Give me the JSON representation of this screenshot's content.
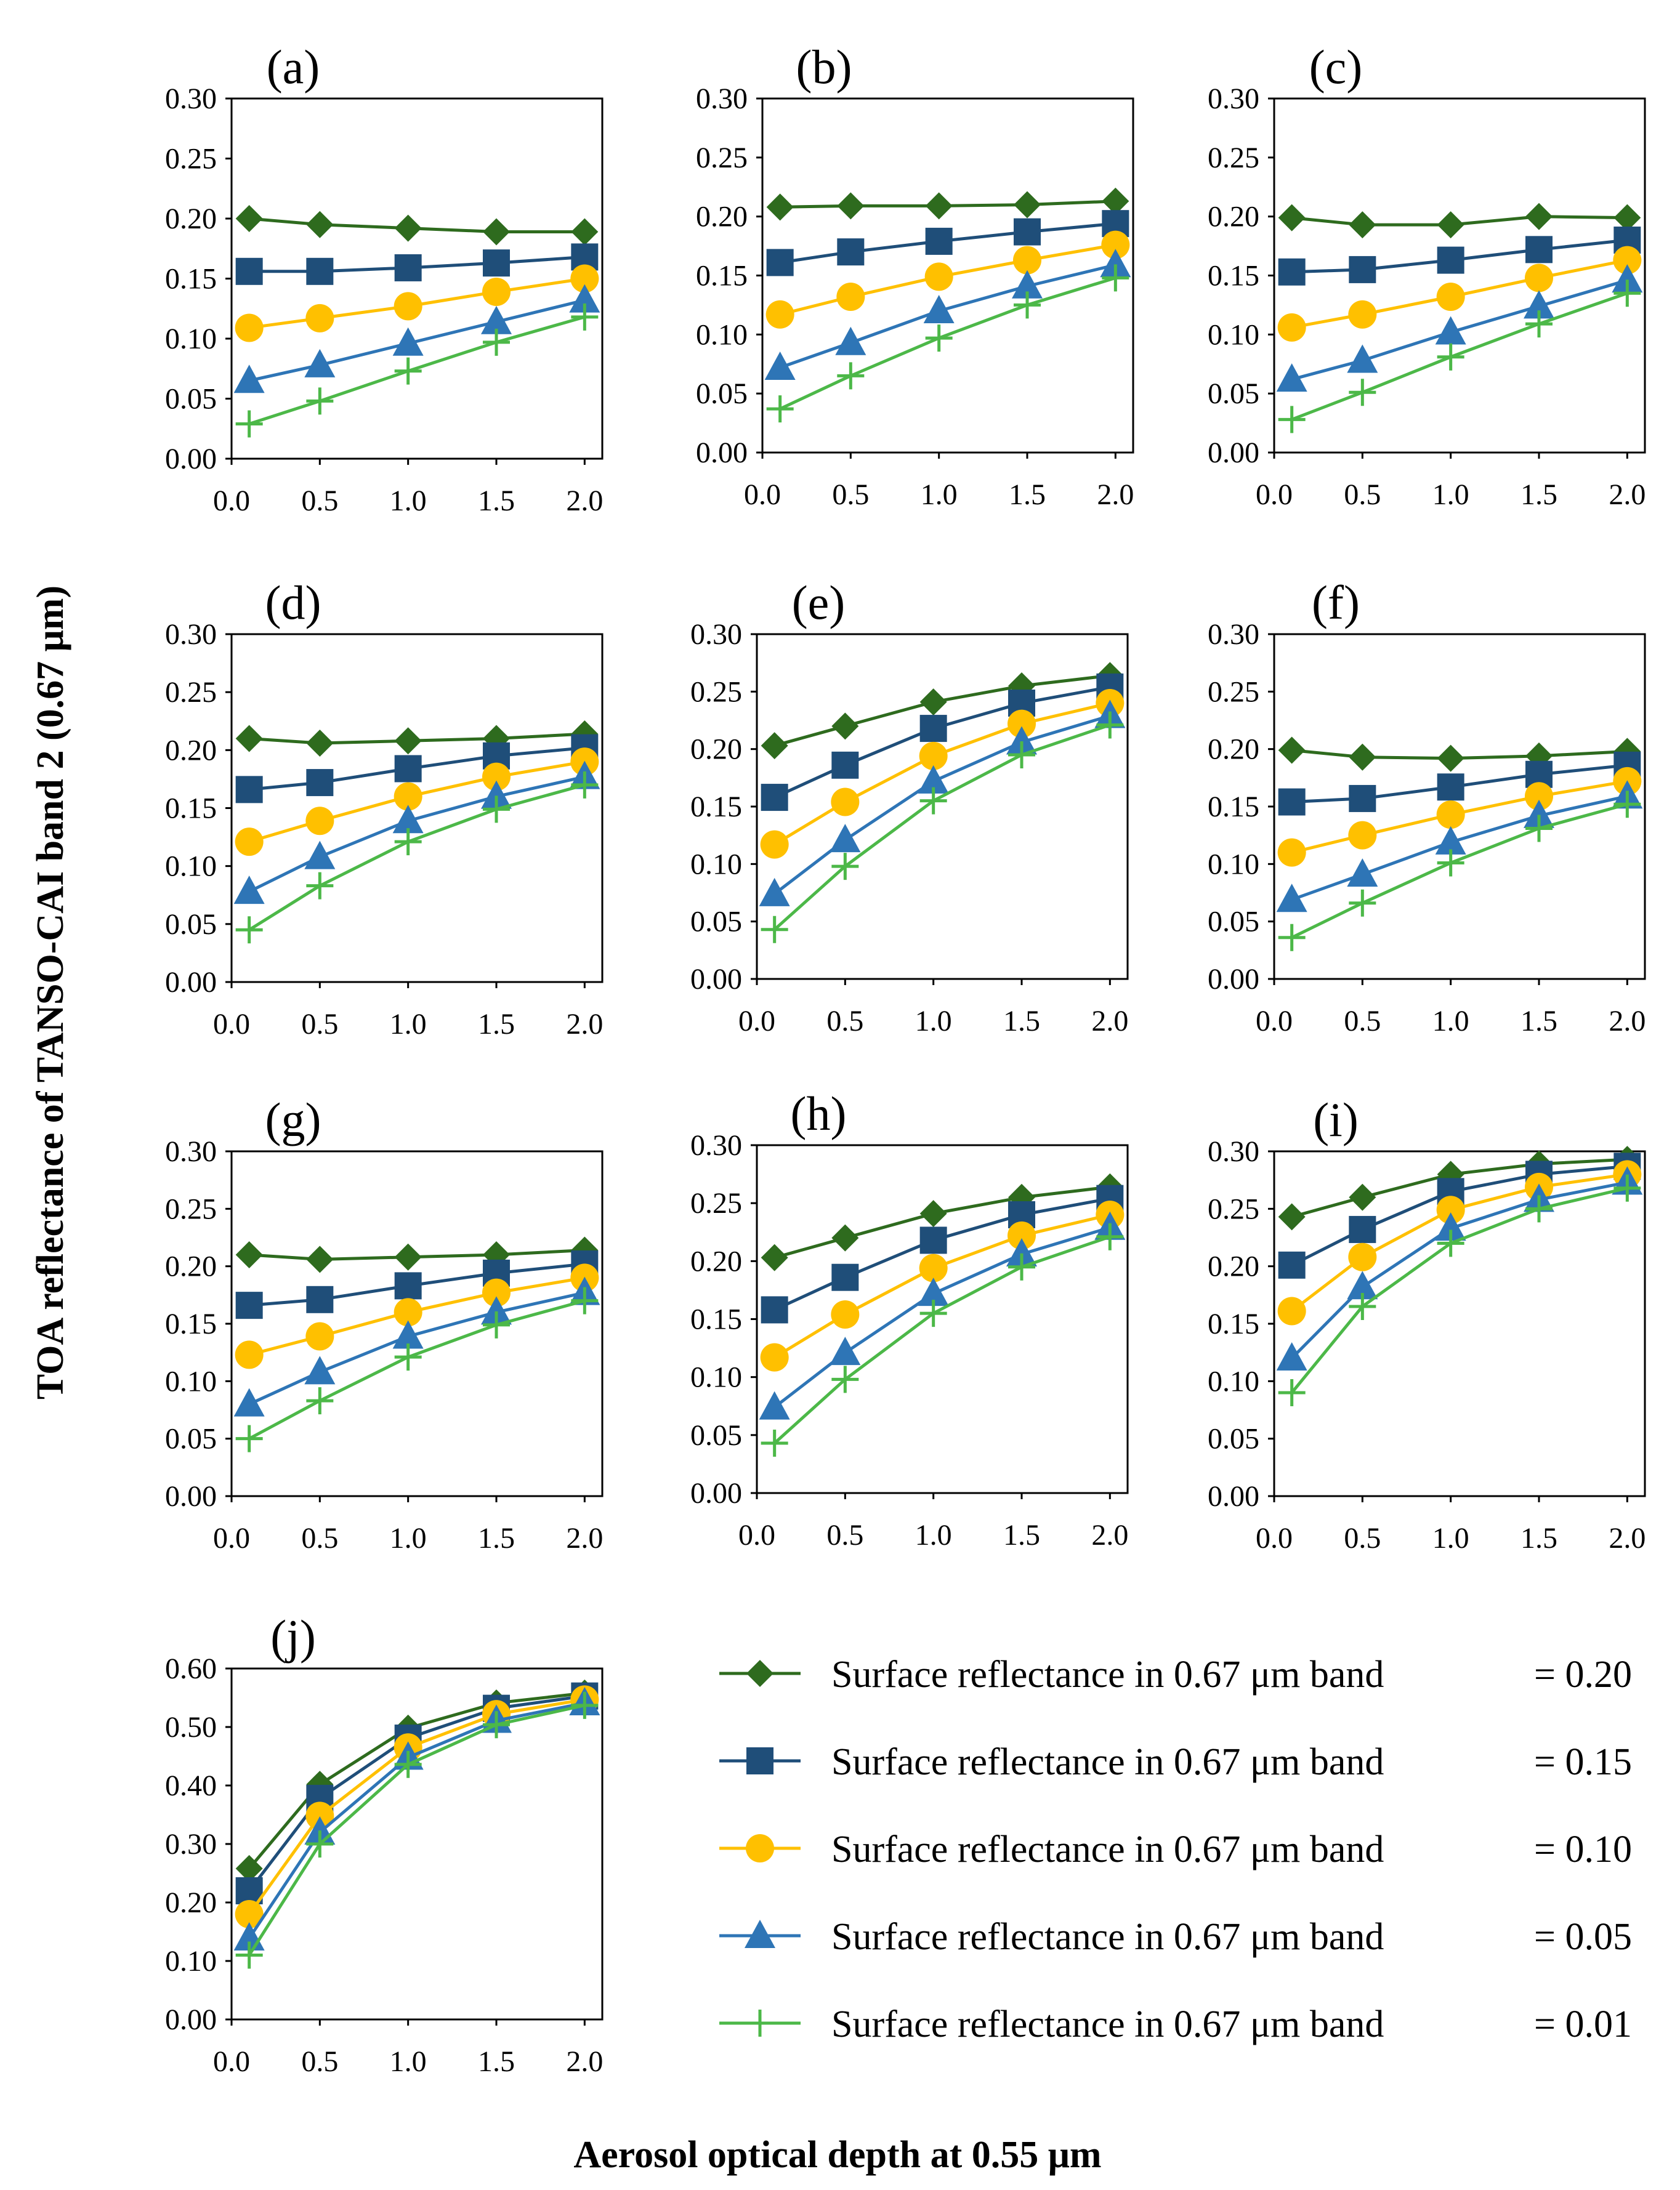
{
  "figure": {
    "ylabel": "TOA reflectance of TANSO-CAI band 2 (0.67 μm)",
    "xlabel": "Aerosol optical depth at 0.55 μm"
  },
  "legend": [
    {
      "label": "Surface reflectance in 0.67 μm band",
      "value": "= 0.20",
      "color": "#2E6B1E",
      "marker": "diamond"
    },
    {
      "label": "Surface reflectance in 0.67 μm band",
      "value": "= 0.15",
      "color": "#1F4E79",
      "marker": "square"
    },
    {
      "label": "Surface reflectance in 0.67 μm band",
      "value": "= 0.10",
      "color": "#FFC000",
      "marker": "circle"
    },
    {
      "label": "Surface reflectance in 0.67 μm band",
      "value": "= 0.05",
      "color": "#2E75B6",
      "marker": "triangle"
    },
    {
      "label": "Surface reflectance in 0.67 μm band",
      "value": "= 0.01",
      "color": "#4CB848",
      "marker": "plus"
    }
  ],
  "chart_data": [
    {
      "type": "line",
      "title": "(a)",
      "x": [
        0.1,
        0.5,
        1.0,
        1.5,
        2.0
      ],
      "xticks": [
        "0.0",
        "0.5",
        "1.0",
        "1.5",
        "2.0"
      ],
      "xlim": [
        0,
        2.1
      ],
      "yticks": [
        "0.00",
        "0.05",
        "0.10",
        "0.15",
        "0.20",
        "0.25",
        "0.30"
      ],
      "ylim": [
        0,
        0.3
      ],
      "series": [
        {
          "name": "0.20",
          "values": [
            0.2,
            0.195,
            0.192,
            0.189,
            0.189
          ]
        },
        {
          "name": "0.15",
          "values": [
            0.156,
            0.156,
            0.159,
            0.163,
            0.168
          ]
        },
        {
          "name": "0.10",
          "values": [
            0.109,
            0.117,
            0.127,
            0.139,
            0.15
          ]
        },
        {
          "name": "0.05",
          "values": [
            0.065,
            0.078,
            0.096,
            0.114,
            0.132
          ]
        },
        {
          "name": "0.01",
          "values": [
            0.029,
            0.048,
            0.073,
            0.097,
            0.118
          ]
        }
      ]
    },
    {
      "type": "line",
      "title": "(b)",
      "x": [
        0.1,
        0.5,
        1.0,
        1.5,
        2.0
      ],
      "xticks": [
        "0.0",
        "0.5",
        "1.0",
        "1.5",
        "2.0"
      ],
      "xlim": [
        0,
        2.1
      ],
      "yticks": [
        "0.00",
        "0.05",
        "0.10",
        "0.15",
        "0.20",
        "0.25",
        "0.30"
      ],
      "ylim": [
        0,
        0.3
      ],
      "series": [
        {
          "name": "0.20",
          "values": [
            0.208,
            0.209,
            0.209,
            0.21,
            0.213
          ]
        },
        {
          "name": "0.15",
          "values": [
            0.161,
            0.17,
            0.179,
            0.187,
            0.194
          ]
        },
        {
          "name": "0.10",
          "values": [
            0.117,
            0.132,
            0.149,
            0.163,
            0.176
          ]
        },
        {
          "name": "0.05",
          "values": [
            0.072,
            0.093,
            0.12,
            0.141,
            0.159
          ]
        },
        {
          "name": "0.01",
          "values": [
            0.037,
            0.065,
            0.097,
            0.125,
            0.148
          ]
        }
      ]
    },
    {
      "type": "line",
      "title": "(c)",
      "x": [
        0.1,
        0.5,
        1.0,
        1.5,
        2.0
      ],
      "xticks": [
        "0.0",
        "0.5",
        "1.0",
        "1.5",
        "2.0"
      ],
      "xlim": [
        0,
        2.1
      ],
      "yticks": [
        "0.00",
        "0.05",
        "0.10",
        "0.15",
        "0.20",
        "0.25",
        "0.30"
      ],
      "ylim": [
        0,
        0.3
      ],
      "series": [
        {
          "name": "0.20",
          "values": [
            0.199,
            0.193,
            0.193,
            0.2,
            0.199
          ]
        },
        {
          "name": "0.15",
          "values": [
            0.153,
            0.155,
            0.163,
            0.172,
            0.18
          ]
        },
        {
          "name": "0.10",
          "values": [
            0.106,
            0.117,
            0.132,
            0.148,
            0.163
          ]
        },
        {
          "name": "0.05",
          "values": [
            0.062,
            0.078,
            0.102,
            0.124,
            0.146
          ]
        },
        {
          "name": "0.01",
          "values": [
            0.028,
            0.051,
            0.081,
            0.109,
            0.135
          ]
        }
      ]
    },
    {
      "type": "line",
      "title": "(d)",
      "x": [
        0.1,
        0.5,
        1.0,
        1.5,
        2.0
      ],
      "xticks": [
        "0.0",
        "0.5",
        "1.0",
        "1.5",
        "2.0"
      ],
      "xlim": [
        0,
        2.1
      ],
      "yticks": [
        "0.00",
        "0.05",
        "0.10",
        "0.15",
        "0.20",
        "0.25",
        "0.30"
      ],
      "ylim": [
        0,
        0.3
      ],
      "series": [
        {
          "name": "0.20",
          "values": [
            0.21,
            0.206,
            0.208,
            0.21,
            0.214
          ]
        },
        {
          "name": "0.15",
          "values": [
            0.166,
            0.172,
            0.184,
            0.195,
            0.202
          ]
        },
        {
          "name": "0.10",
          "values": [
            0.121,
            0.139,
            0.16,
            0.177,
            0.19
          ]
        },
        {
          "name": "0.05",
          "values": [
            0.078,
            0.108,
            0.139,
            0.16,
            0.177
          ]
        },
        {
          "name": "0.01",
          "values": [
            0.045,
            0.083,
            0.121,
            0.149,
            0.17
          ]
        }
      ]
    },
    {
      "type": "line",
      "title": "(e)",
      "x": [
        0.1,
        0.5,
        1.0,
        1.5,
        2.0
      ],
      "xticks": [
        "0.0",
        "0.5",
        "1.0",
        "1.5",
        "2.0"
      ],
      "xlim": [
        0,
        2.1
      ],
      "yticks": [
        "0.00",
        "0.05",
        "0.10",
        "0.15",
        "0.20",
        "0.25",
        "0.30"
      ],
      "ylim": [
        0,
        0.3
      ],
      "series": [
        {
          "name": "0.20",
          "values": [
            0.203,
            0.22,
            0.241,
            0.255,
            0.264
          ]
        },
        {
          "name": "0.15",
          "values": [
            0.158,
            0.186,
            0.218,
            0.24,
            0.254
          ]
        },
        {
          "name": "0.10",
          "values": [
            0.117,
            0.154,
            0.194,
            0.222,
            0.24
          ]
        },
        {
          "name": "0.05",
          "values": [
            0.074,
            0.121,
            0.172,
            0.206,
            0.229
          ]
        },
        {
          "name": "0.01",
          "values": [
            0.043,
            0.098,
            0.155,
            0.195,
            0.221
          ]
        }
      ]
    },
    {
      "type": "line",
      "title": "(f)",
      "x": [
        0.1,
        0.5,
        1.0,
        1.5,
        2.0
      ],
      "xticks": [
        "0.0",
        "0.5",
        "1.0",
        "1.5",
        "2.0"
      ],
      "xlim": [
        0,
        2.1
      ],
      "yticks": [
        "0.00",
        "0.05",
        "0.10",
        "0.15",
        "0.20",
        "0.25",
        "0.30"
      ],
      "ylim": [
        0,
        0.3
      ],
      "series": [
        {
          "name": "0.20",
          "values": [
            0.199,
            0.193,
            0.192,
            0.194,
            0.198
          ]
        },
        {
          "name": "0.15",
          "values": [
            0.154,
            0.157,
            0.167,
            0.178,
            0.186
          ]
        },
        {
          "name": "0.10",
          "values": [
            0.11,
            0.125,
            0.143,
            0.159,
            0.172
          ]
        },
        {
          "name": "0.05",
          "values": [
            0.069,
            0.091,
            0.119,
            0.142,
            0.159
          ]
        },
        {
          "name": "0.01",
          "values": [
            0.036,
            0.066,
            0.101,
            0.131,
            0.152
          ]
        }
      ]
    },
    {
      "type": "line",
      "title": "(g)",
      "x": [
        0.1,
        0.5,
        1.0,
        1.5,
        2.0
      ],
      "xticks": [
        "0.0",
        "0.5",
        "1.0",
        "1.5",
        "2.0"
      ],
      "xlim": [
        0,
        2.1
      ],
      "yticks": [
        "0.00",
        "0.05",
        "0.10",
        "0.15",
        "0.20",
        "0.25",
        "0.30"
      ],
      "ylim": [
        0,
        0.3
      ],
      "series": [
        {
          "name": "0.20",
          "values": [
            0.21,
            0.206,
            0.208,
            0.21,
            0.214
          ]
        },
        {
          "name": "0.15",
          "values": [
            0.166,
            0.171,
            0.183,
            0.194,
            0.202
          ]
        },
        {
          "name": "0.10",
          "values": [
            0.123,
            0.139,
            0.16,
            0.177,
            0.19
          ]
        },
        {
          "name": "0.05",
          "values": [
            0.08,
            0.108,
            0.139,
            0.16,
            0.177
          ]
        },
        {
          "name": "0.01",
          "values": [
            0.05,
            0.083,
            0.121,
            0.149,
            0.17
          ]
        }
      ]
    },
    {
      "type": "line",
      "title": "(h)",
      "x": [
        0.1,
        0.5,
        1.0,
        1.5,
        2.0
      ],
      "xticks": [
        "0.0",
        "0.5",
        "1.0",
        "1.5",
        "2.0"
      ],
      "xlim": [
        0,
        2.1
      ],
      "yticks": [
        "0.00",
        "0.05",
        "0.10",
        "0.15",
        "0.20",
        "0.25",
        "0.30"
      ],
      "ylim": [
        0,
        0.3
      ],
      "series": [
        {
          "name": "0.20",
          "values": [
            0.203,
            0.22,
            0.241,
            0.255,
            0.264
          ]
        },
        {
          "name": "0.15",
          "values": [
            0.158,
            0.186,
            0.218,
            0.24,
            0.254
          ]
        },
        {
          "name": "0.10",
          "values": [
            0.117,
            0.154,
            0.194,
            0.222,
            0.24
          ]
        },
        {
          "name": "0.05",
          "values": [
            0.074,
            0.121,
            0.172,
            0.206,
            0.229
          ]
        },
        {
          "name": "0.01",
          "values": [
            0.043,
            0.098,
            0.155,
            0.195,
            0.221
          ]
        }
      ]
    },
    {
      "type": "line",
      "title": "(i)",
      "x": [
        0.1,
        0.5,
        1.0,
        1.5,
        2.0
      ],
      "xticks": [
        "0.0",
        "0.5",
        "1.0",
        "1.5",
        "2.0"
      ],
      "xlim": [
        0,
        2.1
      ],
      "yticks": [
        "0.00",
        "0.05",
        "0.10",
        "0.15",
        "0.20",
        "0.25",
        "0.30"
      ],
      "ylim": [
        0,
        0.3
      ],
      "series": [
        {
          "name": "0.20",
          "values": [
            0.243,
            0.26,
            0.28,
            0.289,
            0.293
          ]
        },
        {
          "name": "0.15",
          "values": [
            0.201,
            0.232,
            0.265,
            0.28,
            0.287
          ]
        },
        {
          "name": "0.10",
          "values": [
            0.161,
            0.208,
            0.249,
            0.269,
            0.28
          ]
        },
        {
          "name": "0.05",
          "values": [
            0.12,
            0.182,
            0.233,
            0.258,
            0.273
          ]
        },
        {
          "name": "0.01",
          "values": [
            0.09,
            0.165,
            0.22,
            0.25,
            0.268
          ]
        }
      ]
    },
    {
      "type": "line",
      "title": "(j)",
      "x": [
        0.1,
        0.5,
        1.0,
        1.5,
        2.0
      ],
      "xticks": [
        "0.0",
        "0.5",
        "1.0",
        "1.5",
        "2.0"
      ],
      "xlim": [
        0,
        2.1
      ],
      "yticks": [
        "0.00",
        "0.10",
        "0.20",
        "0.30",
        "0.40",
        "0.50",
        "0.60"
      ],
      "ylim": [
        0,
        0.6
      ],
      "series": [
        {
          "name": "0.20",
          "values": [
            0.258,
            0.402,
            0.498,
            0.541,
            0.558
          ]
        },
        {
          "name": "0.15",
          "values": [
            0.22,
            0.378,
            0.481,
            0.532,
            0.553
          ]
        },
        {
          "name": "0.10",
          "values": [
            0.18,
            0.348,
            0.465,
            0.522,
            0.547
          ]
        },
        {
          "name": "0.05",
          "values": [
            0.139,
            0.32,
            0.448,
            0.511,
            0.541
          ]
        },
        {
          "name": "0.01",
          "values": [
            0.11,
            0.3,
            0.436,
            0.504,
            0.537
          ]
        }
      ]
    }
  ]
}
